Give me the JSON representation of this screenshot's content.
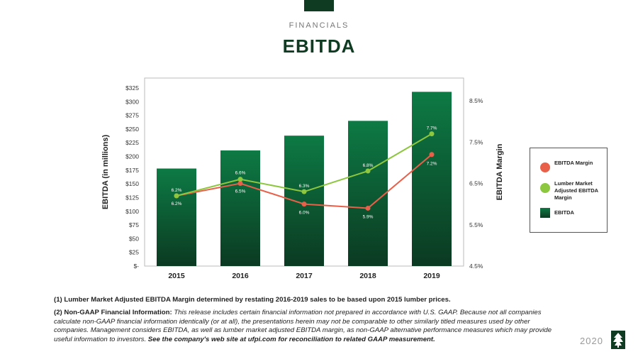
{
  "header": {
    "section": "FINANCIALS",
    "title": "EBITDA"
  },
  "chart_data": {
    "type": "bar+line",
    "categories": [
      "2015",
      "2016",
      "2017",
      "2018",
      "2019"
    ],
    "bars": {
      "name": "EBITDA",
      "values": [
        178,
        211,
        238,
        265,
        318
      ],
      "color": "#0a6b3a"
    },
    "lines": [
      {
        "name": "EBITDA Margin",
        "values": [
          6.2,
          6.5,
          6.0,
          5.9,
          7.2
        ],
        "labels": [
          "6.2%",
          "6.5%",
          "6.0%",
          "5.9%",
          "7.2%"
        ],
        "color": "#e8604a"
      },
      {
        "name": "Lumber Market Adjusted EBITDA Margin",
        "values": [
          6.2,
          6.6,
          6.3,
          6.8,
          7.7
        ],
        "labels": [
          "6.2%",
          "6.6%",
          "6.3%",
          "6.8%",
          "7.7%"
        ],
        "color": "#8dc63f"
      }
    ],
    "ylabel": "EBITDA (in millions)",
    "y2label": "EBITDA Margin",
    "ylim": [
      0,
      325
    ],
    "yticks": [
      "$-",
      "$25",
      "$50",
      "$75",
      "$100",
      "$125",
      "$150",
      "$175",
      "$200",
      "$225",
      "$250",
      "$275",
      "$300",
      "$325"
    ],
    "y2lim": [
      4.5,
      8.5
    ],
    "y2ticks": [
      "4.5%",
      "5.5%",
      "6.5%",
      "7.5%",
      "8.5%"
    ],
    "grid": false,
    "legend_position": "right"
  },
  "legend": {
    "items": [
      {
        "label": "EBITDA Margin",
        "color": "#e8604a",
        "shape": "circle"
      },
      {
        "label": "Lumber Market Adjusted EBITDA Margin",
        "color": "#8dc63f",
        "shape": "circle"
      },
      {
        "label": "EBITDA",
        "color": "#0a6b3a",
        "shape": "square"
      }
    ]
  },
  "footnotes": {
    "note1": "(1) Lumber Market Adjusted EBITDA Margin determined by restating 2016-2019 sales to be based upon 2015 lumber prices.",
    "note2_head": "(2) Non-GAAP Financial Information:",
    "note2_body": " This release includes certain financial information not prepared in accordance with U.S. GAAP. Because not all companies calculate non-GAAP financial information identically (or at all), the presentations herein may not be comparable to other similarly titled measures used by other companies. Management considers EBITDA, as well as lumber market adjusted EBITDA margin, as non-GAAP alternative performance measures which may provide useful information to investors. ",
    "note2_link": "See the company's web site at ufpi.com for reconciliation to related GAAP measurement."
  },
  "footer": {
    "year": "2020"
  },
  "logo": {
    "icon": "tree-logo-icon"
  }
}
